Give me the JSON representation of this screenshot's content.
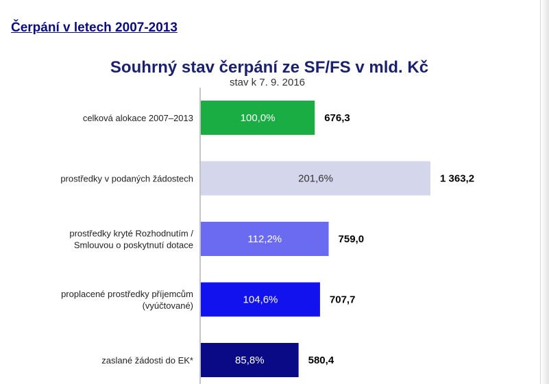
{
  "header": {
    "link_text": "Čerpání v letech 2007-2013"
  },
  "chart_data": {
    "type": "bar",
    "orientation": "horizontal",
    "title": "Souhrný stav čerpání ze SF/FS v mld. Kč",
    "subtitle": "stav k 7. 9. 2016",
    "categories": [
      [
        "celková alokace 2007–2013"
      ],
      [
        "prostředky v podaných žádostech"
      ],
      [
        "prostředky kryté Rozhodnutím /",
        "Smlouvou o poskytnutí dotace"
      ],
      [
        "proplacené prostředky příjemcům",
        "(vyúčtované)"
      ],
      [
        "zaslané žádosti do EK*"
      ]
    ],
    "values": [
      676.3,
      1363.2,
      759.0,
      707.7,
      580.4
    ],
    "value_labels": [
      "676,3",
      "1 363,2",
      "759,0",
      "707,7",
      "580,4"
    ],
    "percent_labels": [
      "100,0%",
      "201,6%",
      "112,2%",
      "104,6%",
      "85,8%"
    ],
    "bar_colors": [
      "#1aad43",
      "#d4d6ec",
      "#6b6bf2",
      "#1212ee",
      "#0a0a86"
    ],
    "bar_label_colors": [
      "#ffffff",
      "#333333",
      "#ffffff",
      "#ffffff",
      "#ffffff"
    ],
    "xlim": [
      0,
      1363.2
    ],
    "grid": false,
    "legend": "none"
  }
}
